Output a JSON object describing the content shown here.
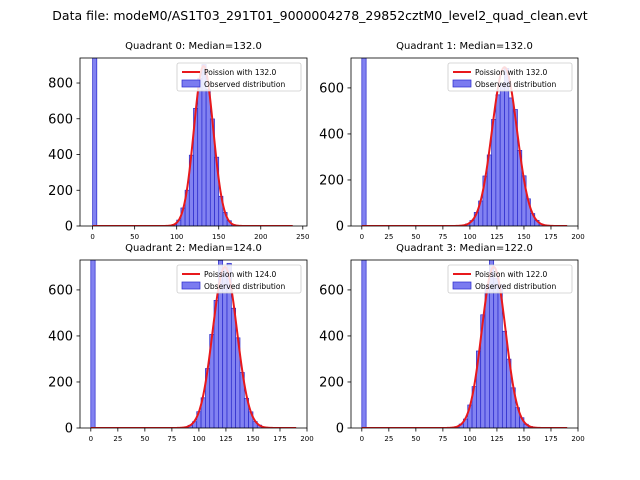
{
  "suptitle": "Data file: modeM0/AS1T03_291T01_9000004278_29852cztM0_level2_quad_clean.evt",
  "colors": {
    "poisson_line": "#e8191c",
    "hist_face": "#7b7bf0",
    "hist_edge": "#2a2acc"
  },
  "chart_data": [
    {
      "type": "bar",
      "title": "Quadrant 0: Median=132.0",
      "xlim": [
        -15,
        255
      ],
      "ylim": [
        0,
        940
      ],
      "xticks": [
        0,
        50,
        100,
        150,
        200,
        250
      ],
      "yticks": [
        0,
        200,
        400,
        600,
        800
      ],
      "bin_width": 5,
      "zero_bin": {
        "x": 0,
        "count": 940
      },
      "median": 132,
      "amplitude": 895,
      "spread": 11.5,
      "curve_range": [
        0,
        238
      ],
      "hist_range": [
        95,
        175
      ],
      "legend": [
        "Poission with 132.0",
        "Observed distribution"
      ]
    },
    {
      "type": "bar",
      "title": "Quadrant 1: Median=132.0",
      "xlim": [
        -10,
        200
      ],
      "ylim": [
        0,
        730
      ],
      "xticks": [
        0,
        25,
        50,
        75,
        100,
        125,
        150,
        175,
        200
      ],
      "yticks": [
        0,
        200,
        400,
        600
      ],
      "bin_width": 4,
      "zero_bin": {
        "x": 0,
        "count": 730
      },
      "median": 132,
      "amplitude": 690,
      "spread": 11.5,
      "curve_range": [
        0,
        190
      ],
      "hist_range": [
        88,
        182
      ],
      "legend": [
        "Poission with 132.0",
        "Observed distribution"
      ]
    },
    {
      "type": "bar",
      "title": "Quadrant 2: Median=124.0",
      "xlim": [
        -10,
        200
      ],
      "ylim": [
        0,
        730
      ],
      "xticks": [
        0,
        25,
        50,
        75,
        100,
        125,
        150,
        175,
        200
      ],
      "yticks": [
        0,
        200,
        400,
        600
      ],
      "bin_width": 4,
      "zero_bin": {
        "x": 0,
        "count": 730
      },
      "median": 124,
      "amplitude": 700,
      "spread": 11.2,
      "curve_range": [
        0,
        190
      ],
      "hist_range": [
        82,
        180
      ],
      "legend": [
        "Poission with 124.0",
        "Observed distribution"
      ]
    },
    {
      "type": "bar",
      "title": "Quadrant 3: Median=122.0",
      "xlim": [
        -10,
        200
      ],
      "ylim": [
        0,
        730
      ],
      "xticks": [
        0,
        25,
        50,
        75,
        100,
        125,
        150,
        175,
        200
      ],
      "yticks": [
        0,
        200,
        400,
        600
      ],
      "bin_width": 4,
      "zero_bin": {
        "x": 0,
        "count": 730
      },
      "median": 122,
      "amplitude": 700,
      "spread": 11.0,
      "curve_range": [
        0,
        190
      ],
      "hist_range": [
        82,
        180
      ],
      "legend": [
        "Poission with 122.0",
        "Observed distribution"
      ]
    }
  ]
}
